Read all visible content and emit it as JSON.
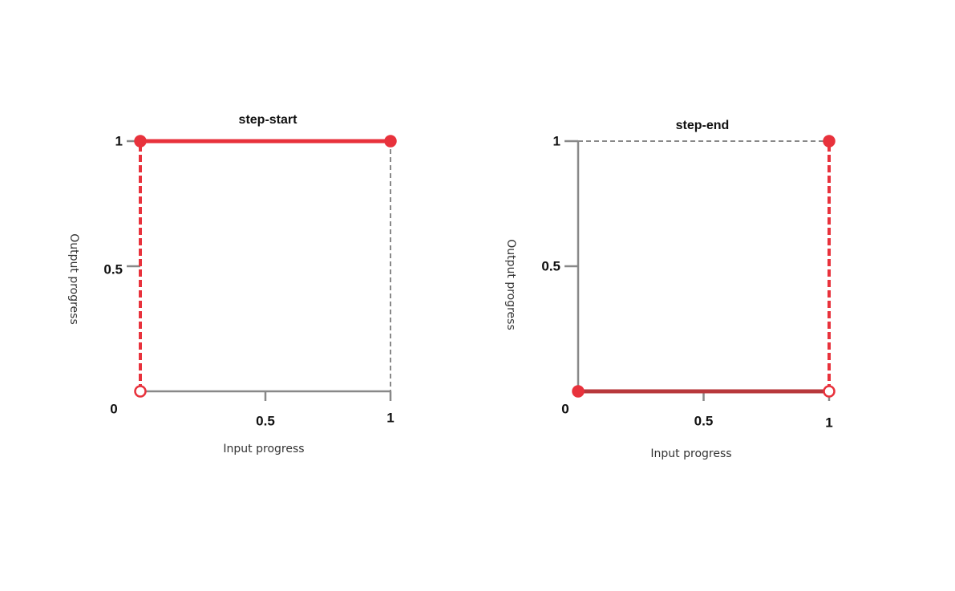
{
  "chart_data": [
    {
      "type": "step",
      "jump": "start",
      "title": "step-start",
      "xlabel": "Input progress",
      "ylabel": "Output progress",
      "x": [
        0,
        1
      ],
      "values": [
        0,
        1
      ],
      "color": "#e8323c",
      "xlim": [
        0,
        1
      ],
      "ylim": [
        0,
        1
      ],
      "xticks": [
        0.5,
        1
      ],
      "yticks": [
        0,
        0.5,
        1
      ]
    },
    {
      "type": "step",
      "jump": "end",
      "title": "step-end",
      "xlabel": "Input progress",
      "ylabel": "Output progress",
      "x": [
        0,
        1
      ],
      "values": [
        0,
        1
      ],
      "color": "#e8323c",
      "xlim": [
        0,
        1
      ],
      "ylim": [
        0,
        1
      ],
      "xticks": [
        0.5,
        1
      ],
      "yticks": [
        0,
        0.5,
        1
      ]
    }
  ]
}
